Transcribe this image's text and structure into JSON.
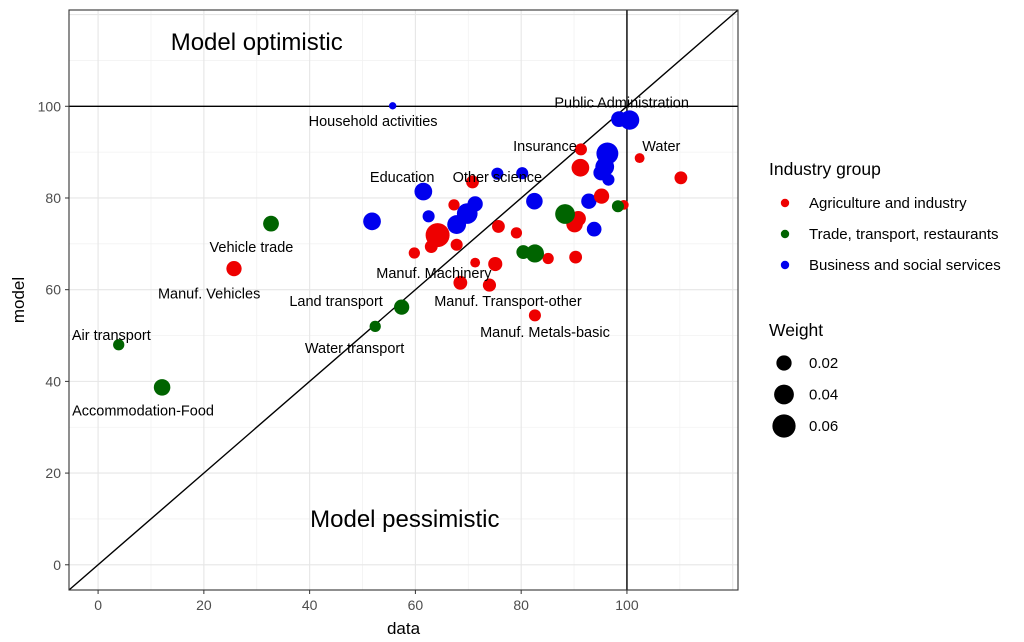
{
  "chart_data": {
    "type": "scatter",
    "xlabel": "data",
    "ylabel": "model",
    "xlim": [
      -5.5,
      121
    ],
    "ylim": [
      -5.5,
      121
    ],
    "x_ticks": [
      0,
      20,
      40,
      60,
      80,
      100
    ],
    "y_ticks": [
      0,
      20,
      40,
      60,
      80,
      100
    ],
    "grid": true,
    "reference_lines": {
      "diagonal": "y = x",
      "vertical_x": 100,
      "horizontal_y": 100
    },
    "annotations": [
      {
        "text": "Model optimistic",
        "x": 30,
        "y": 114
      },
      {
        "text": "Model pessimistic",
        "x": 58,
        "y": 10
      }
    ],
    "colors": {
      "Agriculture and industry": "#ee0000",
      "Trade, transport, restaurants": "#006400",
      "Business and social services": "#0000ee"
    },
    "legend": {
      "position": "right",
      "group_title": "Industry group",
      "groups": [
        "Agriculture and industry",
        "Trade, transport, restaurants",
        "Business and social services"
      ],
      "size_title": "Weight",
      "sizes": [
        {
          "label": "0.02",
          "weight": 0.02
        },
        {
          "label": "0.04",
          "weight": 0.04
        },
        {
          "label": "0.06",
          "weight": 0.06
        }
      ]
    },
    "points": [
      {
        "x": 55.7,
        "y": 100.1,
        "group": "Business and social services",
        "weight": 0.0015,
        "label": "Household activities",
        "lx": 52,
        "ly": 96.8
      },
      {
        "x": 100.5,
        "y": 97,
        "group": "Business and social services",
        "weight": 0.038,
        "label": "Public Administration",
        "lx": 99,
        "ly": 100.8
      },
      {
        "x": 98.5,
        "y": 97.2,
        "group": "Business and social services",
        "weight": 0.022
      },
      {
        "x": 96.3,
        "y": 89.7,
        "group": "Business and social services",
        "weight": 0.052
      },
      {
        "x": 95.8,
        "y": 86.8,
        "group": "Business and social services",
        "weight": 0.035
      },
      {
        "x": 95.1,
        "y": 85.5,
        "group": "Business and social services",
        "weight": 0.02
      },
      {
        "x": 96.5,
        "y": 84,
        "group": "Business and social services",
        "weight": 0.01
      },
      {
        "x": 92.8,
        "y": 79.3,
        "group": "Business and social services",
        "weight": 0.02
      },
      {
        "x": 93.8,
        "y": 73.2,
        "group": "Business and social services",
        "weight": 0.018
      },
      {
        "x": 82.5,
        "y": 79.3,
        "group": "Business and social services",
        "weight": 0.025
      },
      {
        "x": 80.2,
        "y": 85.4,
        "group": "Business and social services",
        "weight": 0.01
      },
      {
        "x": 75.5,
        "y": 85.3,
        "group": "Business and social services",
        "weight": 0.01
      },
      {
        "x": 61.5,
        "y": 81.4,
        "group": "Business and social services",
        "weight": 0.03,
        "label": "Education",
        "lx": 57.5,
        "ly": 84.6
      },
      {
        "x": 62.5,
        "y": 76,
        "group": "Business and social services",
        "weight": 0.01
      },
      {
        "x": 51.8,
        "y": 74.9,
        "group": "Business and social services",
        "weight": 0.03
      },
      {
        "x": 67.8,
        "y": 74.2,
        "group": "Business and social services",
        "weight": 0.035
      },
      {
        "x": 69.8,
        "y": 76.6,
        "group": "Business and social services",
        "weight": 0.045,
        "label": "Other science",
        "lx": 75.5,
        "ly": 84.6
      },
      {
        "x": 71.3,
        "y": 78.7,
        "group": "Business and social services",
        "weight": 0.02
      },
      {
        "x": 91.3,
        "y": 90.6,
        "group": "Agriculture and industry",
        "weight": 0.01,
        "label": "Insurance",
        "lx": 84.5,
        "ly": 91.3
      },
      {
        "x": 102.4,
        "y": 88.7,
        "group": "Agriculture and industry",
        "weight": 0.005,
        "label": "Water",
        "lx": 106.5,
        "ly": 91.3
      },
      {
        "x": 110.2,
        "y": 84.4,
        "group": "Agriculture and industry",
        "weight": 0.012
      },
      {
        "x": 91.2,
        "y": 86.6,
        "group": "Agriculture and industry",
        "weight": 0.03
      },
      {
        "x": 95.2,
        "y": 80.4,
        "group": "Agriculture and industry",
        "weight": 0.02
      },
      {
        "x": 90.8,
        "y": 75.5,
        "group": "Agriculture and industry",
        "weight": 0.02
      },
      {
        "x": 90.1,
        "y": 74.3,
        "group": "Agriculture and industry",
        "weight": 0.025
      },
      {
        "x": 99.4,
        "y": 78.5,
        "group": "Agriculture and industry",
        "weight": 0.005
      },
      {
        "x": 90.3,
        "y": 67.1,
        "group": "Agriculture and industry",
        "weight": 0.012
      },
      {
        "x": 85.1,
        "y": 66.8,
        "group": "Agriculture and industry",
        "weight": 0.008
      },
      {
        "x": 82.6,
        "y": 54.4,
        "group": "Agriculture and industry",
        "weight": 0.01,
        "label": "Manuf. Metals-basic",
        "lx": 84.5,
        "ly": 50.8
      },
      {
        "x": 75.1,
        "y": 65.6,
        "group": "Agriculture and industry",
        "weight": 0.016
      },
      {
        "x": 74,
        "y": 61,
        "group": "Agriculture and industry",
        "weight": 0.013,
        "label": "Manuf. Transport-other",
        "lx": 77.5,
        "ly": 57.5
      },
      {
        "x": 75.7,
        "y": 73.8,
        "group": "Agriculture and industry",
        "weight": 0.012
      },
      {
        "x": 71.3,
        "y": 65.9,
        "group": "Agriculture and industry",
        "weight": 0.005
      },
      {
        "x": 70.8,
        "y": 83.5,
        "group": "Agriculture and industry",
        "weight": 0.012
      },
      {
        "x": 79.1,
        "y": 72.4,
        "group": "Agriculture and industry",
        "weight": 0.008
      },
      {
        "x": 64.2,
        "y": 71.9,
        "group": "Agriculture and industry",
        "weight": 0.065
      },
      {
        "x": 67.3,
        "y": 78.5,
        "group": "Agriculture and industry",
        "weight": 0.008
      },
      {
        "x": 67.8,
        "y": 69.8,
        "group": "Agriculture and industry",
        "weight": 0.01
      },
      {
        "x": 63,
        "y": 69.4,
        "group": "Agriculture and industry",
        "weight": 0.012
      },
      {
        "x": 59.8,
        "y": 68,
        "group": "Agriculture and industry",
        "weight": 0.008
      },
      {
        "x": 68.5,
        "y": 61.5,
        "group": "Agriculture and industry",
        "weight": 0.015,
        "label": "Manuf. Machinery",
        "lx": 63.5,
        "ly": 63.6
      },
      {
        "x": 25.7,
        "y": 64.6,
        "group": "Agriculture and industry",
        "weight": 0.02,
        "label": "Manuf. Vehicles",
        "lx": 21,
        "ly": 59.2
      },
      {
        "x": 32.7,
        "y": 74.4,
        "group": "Trade, transport, restaurants",
        "weight": 0.022,
        "label": "Vehicle trade",
        "lx": 29,
        "ly": 69.3
      },
      {
        "x": 88.3,
        "y": 76.5,
        "group": "Trade, transport, restaurants",
        "weight": 0.04
      },
      {
        "x": 98.3,
        "y": 78.2,
        "group": "Trade, transport, restaurants",
        "weight": 0.01
      },
      {
        "x": 82.6,
        "y": 67.9,
        "group": "Trade, transport, restaurants",
        "weight": 0.032
      },
      {
        "x": 80.4,
        "y": 68.2,
        "group": "Trade, transport, restaurants",
        "weight": 0.015
      },
      {
        "x": 57.4,
        "y": 56.2,
        "group": "Trade, transport, restaurants",
        "weight": 0.02,
        "label": "Land transport",
        "lx": 45,
        "ly": 57.5
      },
      {
        "x": 52.4,
        "y": 52,
        "group": "Trade, transport, restaurants",
        "weight": 0.008,
        "label": "Water transport",
        "lx": 48.5,
        "ly": 47.3
      },
      {
        "x": 3.9,
        "y": 48,
        "group": "Trade, transport, restaurants",
        "weight": 0.008,
        "label": "Air transport",
        "lx": 2.5,
        "ly": 50.1
      },
      {
        "x": 12.1,
        "y": 38.7,
        "group": "Trade, transport, restaurants",
        "weight": 0.025,
        "label": "Accommodation-Food",
        "lx": 8.5,
        "ly": 33.7
      }
    ]
  }
}
